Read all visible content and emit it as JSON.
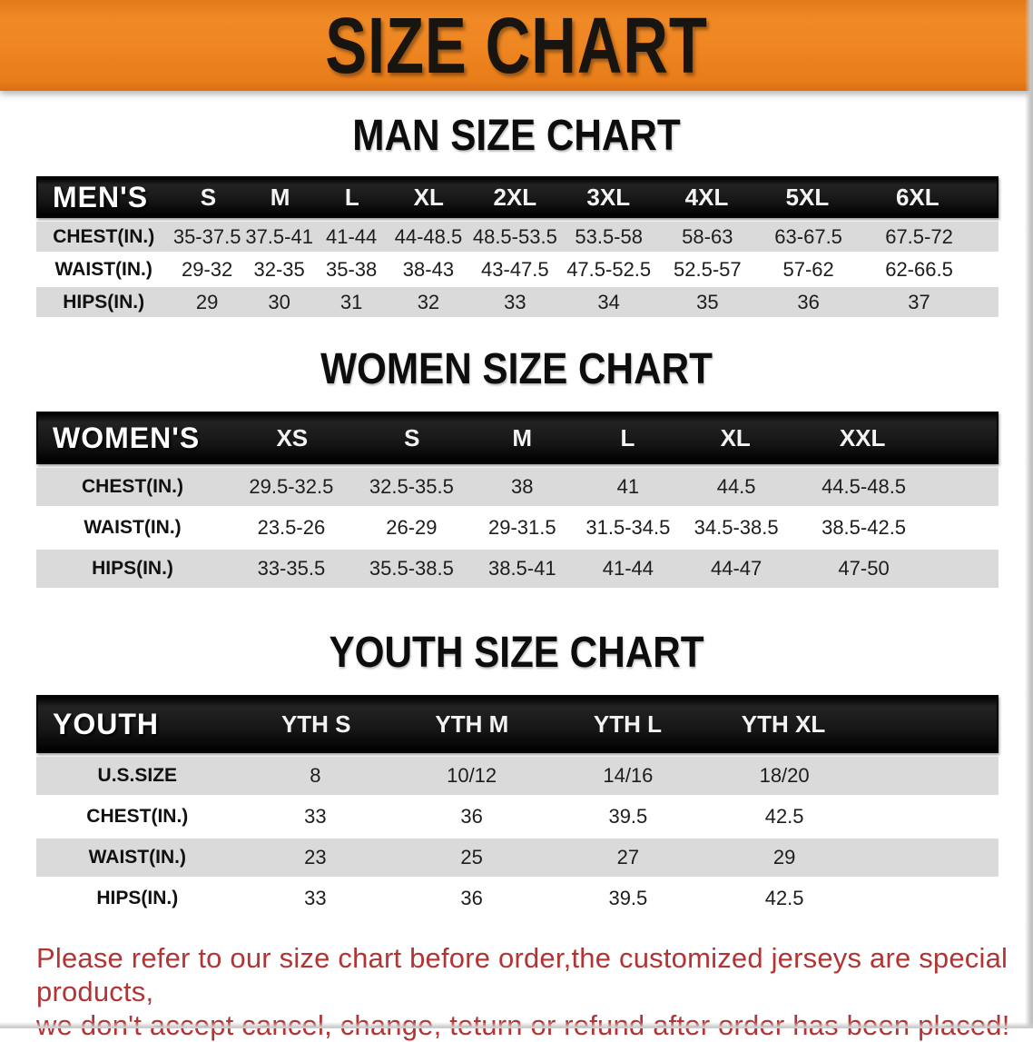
{
  "banner": {
    "title": "SIZE CHART"
  },
  "colors": {
    "banner_orange": "#ec8220",
    "header_black": "#151515",
    "stripe_gray": "#dadada",
    "note_red": "#b23434"
  },
  "sections": [
    {
      "title": "MAN SIZE CHART",
      "table": {
        "header_label": "MEN'S",
        "columns": [
          "S",
          "M",
          "L",
          "XL",
          "2XL",
          "3XL",
          "4XL",
          "5XL",
          "6XL"
        ],
        "rows": [
          {
            "label": "CHEST(IN.)",
            "values": [
              "35-37.5",
              "37.5-41",
              "41-44",
              "44-48.5",
              "48.5-53.5",
              "53.5-58",
              "58-63",
              "63-67.5",
              "67.5-72"
            ]
          },
          {
            "label": "WAIST(IN.)",
            "values": [
              "29-32",
              "32-35",
              "35-38",
              "38-43",
              "43-47.5",
              "47.5-52.5",
              "52.5-57",
              "57-62",
              "62-66.5"
            ]
          },
          {
            "label": "HIPS(IN.)",
            "values": [
              "29",
              "30",
              "31",
              "32",
              "33",
              "34",
              "35",
              "36",
              "37"
            ]
          }
        ]
      }
    },
    {
      "title": "WOMEN SIZE CHART",
      "table": {
        "header_label": "WOMEN'S",
        "columns": [
          "XS",
          "S",
          "M",
          "L",
          "XL",
          "XXL"
        ],
        "rows": [
          {
            "label": "CHEST(IN.)",
            "values": [
              "29.5-32.5",
              "32.5-35.5",
              "38",
              "41",
              "44.5",
              "44.5-48.5"
            ]
          },
          {
            "label": "WAIST(IN.)",
            "values": [
              "23.5-26",
              "26-29",
              "29-31.5",
              "31.5-34.5",
              "34.5-38.5",
              "38.5-42.5"
            ]
          },
          {
            "label": "HIPS(IN.)",
            "values": [
              "33-35.5",
              "35.5-38.5",
              "38.5-41",
              "41-44",
              "44-47",
              "47-50"
            ]
          }
        ]
      }
    },
    {
      "title": "YOUTH SIZE CHART",
      "table": {
        "header_label": "YOUTH",
        "columns": [
          "YTH S",
          "YTH M",
          "YTH L",
          "YTH XL"
        ],
        "rows": [
          {
            "label": "U.S.SIZE",
            "values": [
              "8",
              "10/12",
              "14/16",
              "18/20"
            ]
          },
          {
            "label": "CHEST(IN.)",
            "values": [
              "33",
              "36",
              "39.5",
              "42.5"
            ]
          },
          {
            "label": "WAIST(IN.)",
            "values": [
              "23",
              "25",
              "27",
              "29"
            ]
          },
          {
            "label": "HIPS(IN.)",
            "values": [
              "33",
              "36",
              "39.5",
              "42.5"
            ]
          }
        ]
      }
    }
  ],
  "footer_note": {
    "line1": "Please refer to our size chart before order,the customized jerseys are special products,",
    "line2": "we don't accept cancel, change, teturn or refund after order has been placed!"
  },
  "chart_data": [
    {
      "type": "table",
      "title": "MAN SIZE CHART",
      "columns": [
        "MEN'S",
        "S",
        "M",
        "L",
        "XL",
        "2XL",
        "3XL",
        "4XL",
        "5XL",
        "6XL"
      ],
      "rows": [
        [
          "CHEST(IN.)",
          "35-37.5",
          "37.5-41",
          "41-44",
          "44-48.5",
          "48.5-53.5",
          "53.5-58",
          "58-63",
          "63-67.5",
          "67.5-72"
        ],
        [
          "WAIST(IN.)",
          "29-32",
          "32-35",
          "35-38",
          "38-43",
          "43-47.5",
          "47.5-52.5",
          "52.5-57",
          "57-62",
          "62-66.5"
        ],
        [
          "HIPS(IN.)",
          "29",
          "30",
          "31",
          "32",
          "33",
          "34",
          "35",
          "36",
          "37"
        ]
      ]
    },
    {
      "type": "table",
      "title": "WOMEN SIZE CHART",
      "columns": [
        "WOMEN'S",
        "XS",
        "S",
        "M",
        "L",
        "XL",
        "XXL"
      ],
      "rows": [
        [
          "CHEST(IN.)",
          "29.5-32.5",
          "32.5-35.5",
          "38",
          "41",
          "44.5",
          "44.5-48.5"
        ],
        [
          "WAIST(IN.)",
          "23.5-26",
          "26-29",
          "29-31.5",
          "31.5-34.5",
          "34.5-38.5",
          "38.5-42.5"
        ],
        [
          "HIPS(IN.)",
          "33-35.5",
          "35.5-38.5",
          "38.5-41",
          "41-44",
          "44-47",
          "47-50"
        ]
      ]
    },
    {
      "type": "table",
      "title": "YOUTH SIZE CHART",
      "columns": [
        "YOUTH",
        "YTH S",
        "YTH M",
        "YTH L",
        "YTH XL"
      ],
      "rows": [
        [
          "U.S.SIZE",
          "8",
          "10/12",
          "14/16",
          "18/20"
        ],
        [
          "CHEST(IN.)",
          "33",
          "36",
          "39.5",
          "42.5"
        ],
        [
          "WAIST(IN.)",
          "23",
          "25",
          "27",
          "29"
        ],
        [
          "HIPS(IN.)",
          "33",
          "36",
          "39.5",
          "42.5"
        ]
      ]
    }
  ]
}
